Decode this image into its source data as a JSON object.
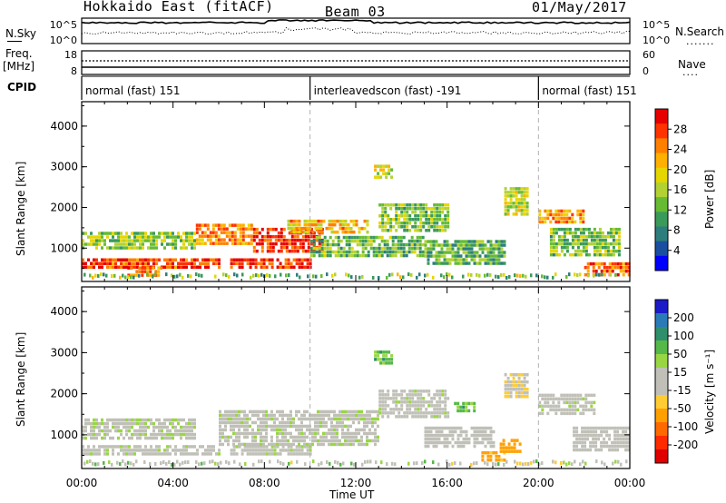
{
  "header": {
    "station": "Hokkaido East (fitACF)",
    "beam": "Beam 03",
    "date": "01/May/2017"
  },
  "left_labels": {
    "nsky": "N.Sky",
    "freq": "Freq.",
    "freq_unit": "[MHz]",
    "cpid": "CPID"
  },
  "right_labels": {
    "nsearch": "N.Search",
    "nave": "Nave"
  },
  "noise_panel": {
    "left_ticks": [
      "10^5",
      "10^0"
    ],
    "right_ticks": [
      "10^5",
      "10^0"
    ]
  },
  "freq_panel": {
    "left_ticks": [
      "18",
      "8"
    ],
    "right_ticks": [
      "60",
      "0"
    ]
  },
  "cpid_segments": [
    {
      "label": "normal (fast) 151",
      "start": 0,
      "end": 10
    },
    {
      "label": "interleavedscon (fast) -191",
      "start": 10,
      "end": 20
    },
    {
      "label": "normal (fast) 151",
      "start": 20,
      "end": 24
    }
  ],
  "colorbars": {
    "power": {
      "label": "Power [dB]",
      "ticks": [
        "28",
        "24",
        "20",
        "16",
        "12",
        "8",
        "4"
      ],
      "colors": [
        "#e60000",
        "#ff3300",
        "#ff7f00",
        "#ffb000",
        "#e6d600",
        "#b2d233",
        "#66bb33",
        "#3a9a5a",
        "#2e7d7d",
        "#1a4fa0",
        "#0000ff"
      ]
    },
    "velocity": {
      "label": "Velocity [m s⁻¹]",
      "ticks": [
        "200",
        "100",
        "50",
        "15",
        "-15",
        "-50",
        "-100",
        "-200"
      ],
      "colors": [
        "#1b1bc8",
        "#2a7ab8",
        "#2f8f6a",
        "#55b848",
        "#99d644",
        "#c0c0b8",
        "#c0c0b8",
        "#ffcc33",
        "#ffa000",
        "#ff6a00",
        "#ff2a00",
        "#e00000"
      ]
    }
  },
  "chart_data": [
    {
      "type": "heatmap",
      "name": "power",
      "ylabel": "Slant Range [km]",
      "xlabel": "Time UT",
      "x_ticks": [
        "00:00",
        "04:00",
        "08:00",
        "12:00",
        "16:00",
        "20:00",
        "00:00"
      ],
      "y_ticks": [
        "4000",
        "3000",
        "2000",
        "1000"
      ],
      "xlim": [
        0,
        24
      ],
      "ylim": [
        180,
        4600
      ],
      "colorbar_label": "Power [dB]",
      "regions": [
        {
          "x0": 0.0,
          "x1": 6.0,
          "y0": 550,
          "y1": 750,
          "value": 26
        },
        {
          "x0": 6.5,
          "x1": 10.0,
          "y0": 550,
          "y1": 750,
          "value": 27
        },
        {
          "x0": 2.0,
          "x1": 3.5,
          "y0": 350,
          "y1": 550,
          "value": 24
        },
        {
          "x0": 5.0,
          "x1": 7.5,
          "y0": 1100,
          "y1": 1600,
          "value": 22
        },
        {
          "x0": 7.5,
          "x1": 10.5,
          "y0": 900,
          "y1": 1500,
          "value": 27
        },
        {
          "x0": 9.0,
          "x1": 12.5,
          "y0": 1350,
          "y1": 1700,
          "value": 20
        },
        {
          "x0": 0.0,
          "x1": 5.0,
          "y0": 1000,
          "y1": 1400,
          "value": 14
        },
        {
          "x0": 10.0,
          "x1": 15.0,
          "y0": 800,
          "y1": 1300,
          "value": 12
        },
        {
          "x0": 13.0,
          "x1": 16.0,
          "y0": 1400,
          "y1": 2100,
          "value": 13
        },
        {
          "x0": 15.0,
          "x1": 18.5,
          "y0": 650,
          "y1": 1200,
          "value": 11
        },
        {
          "x0": 20.0,
          "x1": 22.0,
          "y0": 1650,
          "y1": 1950,
          "value": 22
        },
        {
          "x0": 20.5,
          "x1": 23.5,
          "y0": 800,
          "y1": 1500,
          "value": 13
        },
        {
          "x0": 22.0,
          "x1": 24.0,
          "y0": 300,
          "y1": 650,
          "value": 24
        },
        {
          "x0": 12.8,
          "x1": 13.6,
          "y0": 2700,
          "y1": 3050,
          "value": 17
        },
        {
          "x0": 18.5,
          "x1": 19.5,
          "y0": 1800,
          "y1": 2500,
          "value": 16
        }
      ]
    },
    {
      "type": "heatmap",
      "name": "velocity",
      "ylabel": "Slant Range [km]",
      "xlabel": "Time UT",
      "x_ticks": [
        "00:00",
        "04:00",
        "08:00",
        "12:00",
        "16:00",
        "20:00",
        "00:00"
      ],
      "y_ticks": [
        "4000",
        "3000",
        "2000",
        "1000"
      ],
      "xlim": [
        0,
        24
      ],
      "ylim": [
        180,
        4600
      ],
      "colorbar_label": "Velocity [m s⁻¹]",
      "regions": [
        {
          "x0": 0.0,
          "x1": 6.0,
          "y0": 550,
          "y1": 750,
          "value": 0
        },
        {
          "x0": 6.5,
          "x1": 10.0,
          "y0": 550,
          "y1": 750,
          "value": 0
        },
        {
          "x0": 0.0,
          "x1": 5.0,
          "y0": 950,
          "y1": 1400,
          "value": 5
        },
        {
          "x0": 6.0,
          "x1": 13.0,
          "y0": 800,
          "y1": 1600,
          "value": 0
        },
        {
          "x0": 13.0,
          "x1": 16.0,
          "y0": 1400,
          "y1": 2100,
          "value": 0
        },
        {
          "x0": 15.0,
          "x1": 18.0,
          "y0": 700,
          "y1": 1200,
          "value": -5
        },
        {
          "x0": 17.5,
          "x1": 18.5,
          "y0": 400,
          "y1": 600,
          "value": -60
        },
        {
          "x0": 18.3,
          "x1": 19.2,
          "y0": 600,
          "y1": 900,
          "value": -80
        },
        {
          "x0": 16.3,
          "x1": 17.2,
          "y0": 1550,
          "y1": 1800,
          "value": 40
        },
        {
          "x0": 20.0,
          "x1": 22.5,
          "y0": 1500,
          "y1": 2000,
          "value": 0
        },
        {
          "x0": 21.5,
          "x1": 24.0,
          "y0": 600,
          "y1": 1200,
          "value": -8
        },
        {
          "x0": 12.8,
          "x1": 13.6,
          "y0": 2750,
          "y1": 3050,
          "value": 35
        },
        {
          "x0": 18.5,
          "x1": 19.5,
          "y0": 1900,
          "y1": 2500,
          "value": -30
        }
      ]
    }
  ],
  "annotations": {
    "dashed_times": [
      10,
      20
    ]
  }
}
